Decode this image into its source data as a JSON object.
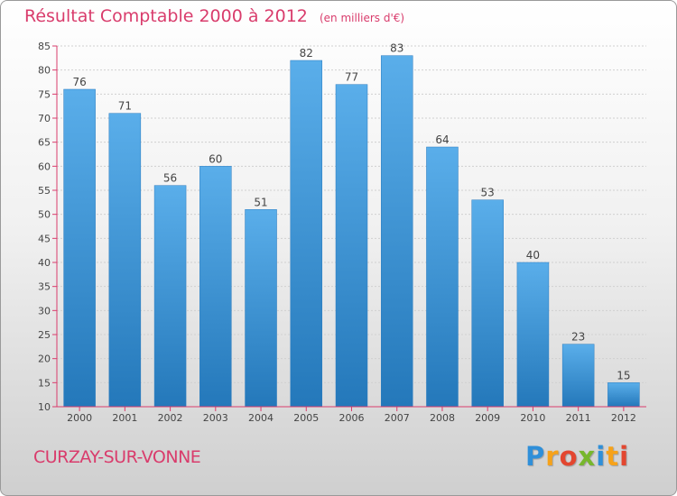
{
  "chart_data": {
    "type": "bar",
    "title": "Résultat Comptable 2000 à 2012",
    "unit": "(en milliers d'€)",
    "categories": [
      "2000",
      "2001",
      "2002",
      "2003",
      "2004",
      "2005",
      "2006",
      "2007",
      "2008",
      "2009",
      "2010",
      "2011",
      "2012"
    ],
    "values": [
      76,
      71,
      56,
      60,
      51,
      82,
      77,
      83,
      64,
      53,
      40,
      23,
      15
    ],
    "ylim": [
      10,
      85
    ],
    "yticks": [
      10,
      15,
      20,
      25,
      30,
      35,
      40,
      45,
      50,
      55,
      60,
      65,
      70,
      75,
      80,
      85
    ],
    "grid": true,
    "xlabel": "",
    "ylabel": "",
    "colors": {
      "bar_light": "#5aaeea",
      "bar_dark": "#2478ba",
      "title": "#d93c6c",
      "tick": "#d93c6c",
      "grid": "#d0d0d0"
    }
  },
  "footer": {
    "commune": "CURZAY-SUR-VONNE",
    "logo_letters": [
      "P",
      "r",
      "o",
      "x",
      "i",
      "t",
      "i"
    ]
  }
}
